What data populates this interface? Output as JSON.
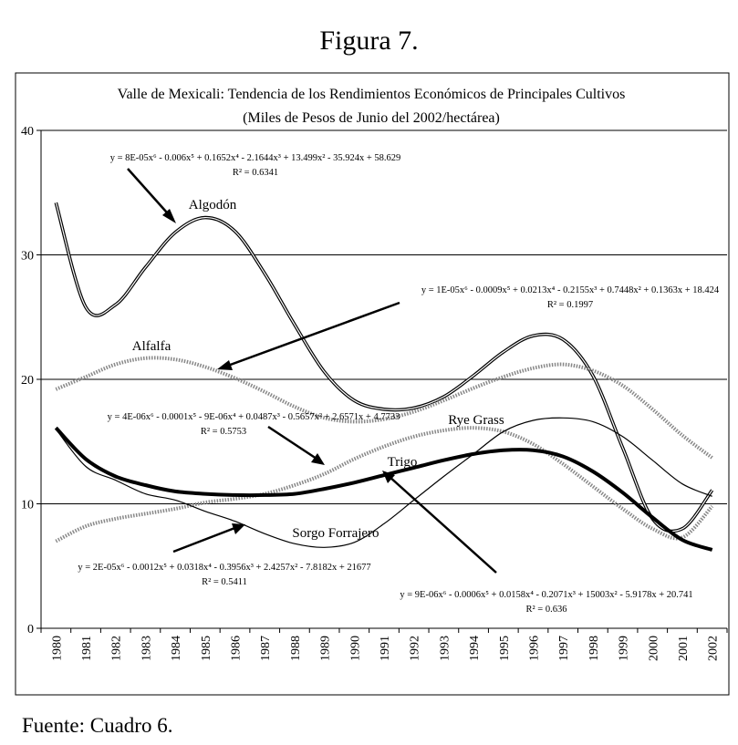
{
  "figure_caption": "Figura 7.",
  "source_note": "Fuente: Cuadro 6.",
  "chart_data": {
    "type": "line",
    "title": "Valle de Mexicali: Tendencia de los Rendimientos Económicos de Principales Cultivos",
    "subtitle": "(Miles de Pesos de Junio del 2002/hectárea)",
    "xlabel": "",
    "ylabel": "",
    "ylim": [
      0,
      40
    ],
    "yticks": [
      0,
      10,
      20,
      30,
      40
    ],
    "grid": "horizontal",
    "x": [
      "1980",
      "1981",
      "1982",
      "1983",
      "1984",
      "1985",
      "1986",
      "1987",
      "1988",
      "1989",
      "1990",
      "1991",
      "1992",
      "1993",
      "1994",
      "1995",
      "1996",
      "1997",
      "1998",
      "1999",
      "2000",
      "2001",
      "2002"
    ],
    "series": [
      {
        "name": "Algodón",
        "style": "thin-double",
        "color": "#000000",
        "values": [
          34.2,
          25.8,
          26.0,
          29.0,
          31.8,
          33.0,
          31.9,
          28.5,
          24.4,
          20.6,
          18.3,
          17.6,
          17.7,
          18.6,
          20.3,
          22.2,
          23.5,
          23.2,
          20.3,
          14.5,
          8.8,
          8.0,
          11.1
        ]
      },
      {
        "name": "Alfalfa",
        "style": "dotted-gray",
        "color": "#888888",
        "values": [
          19.2,
          20.2,
          21.2,
          21.7,
          21.6,
          21.0,
          20.1,
          19.0,
          17.8,
          16.9,
          16.6,
          16.8,
          17.4,
          18.3,
          19.3,
          20.2,
          20.9,
          21.2,
          20.7,
          19.5,
          17.6,
          15.5,
          13.7
        ]
      },
      {
        "name": "Rye Grass",
        "style": "dotted-gray",
        "color": "#888888",
        "values": [
          7.0,
          8.2,
          8.8,
          9.2,
          9.6,
          10.1,
          10.4,
          10.8,
          11.5,
          12.4,
          13.6,
          14.6,
          15.4,
          15.9,
          16.1,
          15.8,
          14.8,
          13.2,
          11.4,
          9.6,
          8.0,
          7.3,
          9.8
        ]
      },
      {
        "name": "Trigo",
        "style": "thick",
        "color": "#000000",
        "values": [
          16.1,
          13.6,
          12.2,
          11.5,
          11.0,
          10.8,
          10.7,
          10.7,
          10.8,
          11.2,
          11.7,
          12.3,
          12.9,
          13.5,
          14.0,
          14.3,
          14.3,
          13.8,
          12.6,
          10.9,
          8.9,
          7.1,
          6.3
        ]
      },
      {
        "name": "Sorgo Forrajero",
        "style": "thin",
        "color": "#000000",
        "values": [
          16.0,
          13.0,
          11.9,
          10.8,
          10.3,
          9.4,
          8.6,
          7.6,
          6.8,
          6.5,
          6.9,
          8.4,
          10.3,
          12.2,
          14.0,
          15.8,
          16.7,
          16.9,
          16.6,
          15.4,
          13.5,
          11.6,
          10.6
        ]
      }
    ],
    "annotations": {
      "labels": {
        "algodon": "Algodón",
        "alfalfa": "Alfalfa",
        "ryegrass": "Rye Grass",
        "trigo": "Trigo",
        "sorgo": "Sorgo Forrajero"
      },
      "equations": {
        "algodon": {
          "eq": "y = 8E-05x⁶ - 0.006x⁵ + 0.1652x⁴ - 2.1644x³ + 13.499x² - 35.924x + 58.629",
          "r2": "R² = 0.6341"
        },
        "alfalfa": {
          "eq": "y = 1E-05x⁶ - 0.0009x⁵ + 0.0213x⁴ - 0.2155x³ + 0.7448x² + 0.1363x + 18.424",
          "r2": "R² = 0.1997"
        },
        "ryegrass": {
          "eq": "y = 4E-06x⁶ - 0.0001x⁵ - 9E-06x⁴ + 0.0487x³ - 0.5657x² + 2.6571x + 4.7733",
          "r2": "R² = 0.5753"
        },
        "sorgo": {
          "eq": "y = 2E-05x⁶ - 0.0012x⁵ + 0.0318x⁴ - 0.3956x³ + 2.4257x² - 7.8182x + 21677",
          "r2": "R² = 0.5411"
        },
        "trigo": {
          "eq": "y = 9E-06x⁶ - 0.0006x⁵ + 0.0158x⁴ - 0.2071x³ + 15003x² - 5.9178x + 20.741",
          "r2": "R² = 0.636"
        }
      }
    }
  }
}
